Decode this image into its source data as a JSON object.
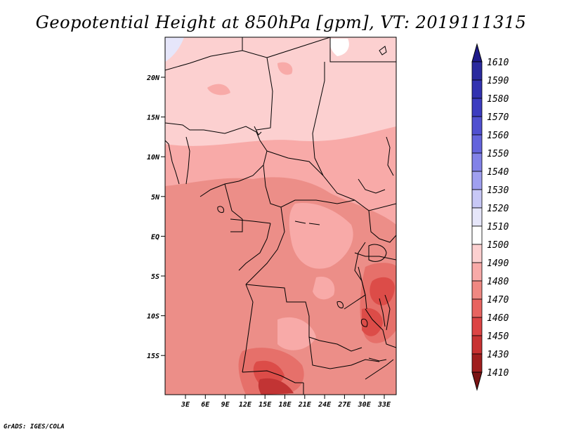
{
  "title": "Geopotential Height at 850hPa [gpm], VT: 2019111315",
  "credit": "GrADS: IGES/COLA",
  "map": {
    "lat_ticks": [
      "20N",
      "15N",
      "10N",
      "5N",
      "EQ",
      "5S",
      "10S",
      "15S"
    ],
    "lon_ticks": [
      "3E",
      "6E",
      "9E",
      "12E",
      "15E",
      "18E",
      "21E",
      "24E",
      "27E",
      "30E",
      "33E"
    ]
  },
  "colorbar": {
    "levels": [
      "1610",
      "1590",
      "1580",
      "1570",
      "1560",
      "1550",
      "1540",
      "1530",
      "1520",
      "1510",
      "1500",
      "1490",
      "1480",
      "1470",
      "1460",
      "1450",
      "1430",
      "1410"
    ],
    "colors": [
      "#1e1a8a",
      "#2a2a9e",
      "#3232b0",
      "#3c3cc0",
      "#5050d0",
      "#6464dc",
      "#8282e8",
      "#a0a0f0",
      "#c8c8f6",
      "#e6e6fa",
      "#ffffff",
      "#fcd0d0",
      "#f8aaa8",
      "#f08882",
      "#e86460",
      "#dc4444",
      "#c83232",
      "#a01e1e",
      "#7a1414"
    ]
  },
  "colors": {
    "shade_1500": "#fcd0d0",
    "shade_1490": "#f8aaa8",
    "shade_1480": "#ec8e88",
    "shade_1470": "#e6706a",
    "shade_1460": "#dc4c48",
    "shade_1450": "#c23434",
    "shade_1430": "#a01e1e",
    "shade_1510": "#e6e6fa"
  }
}
